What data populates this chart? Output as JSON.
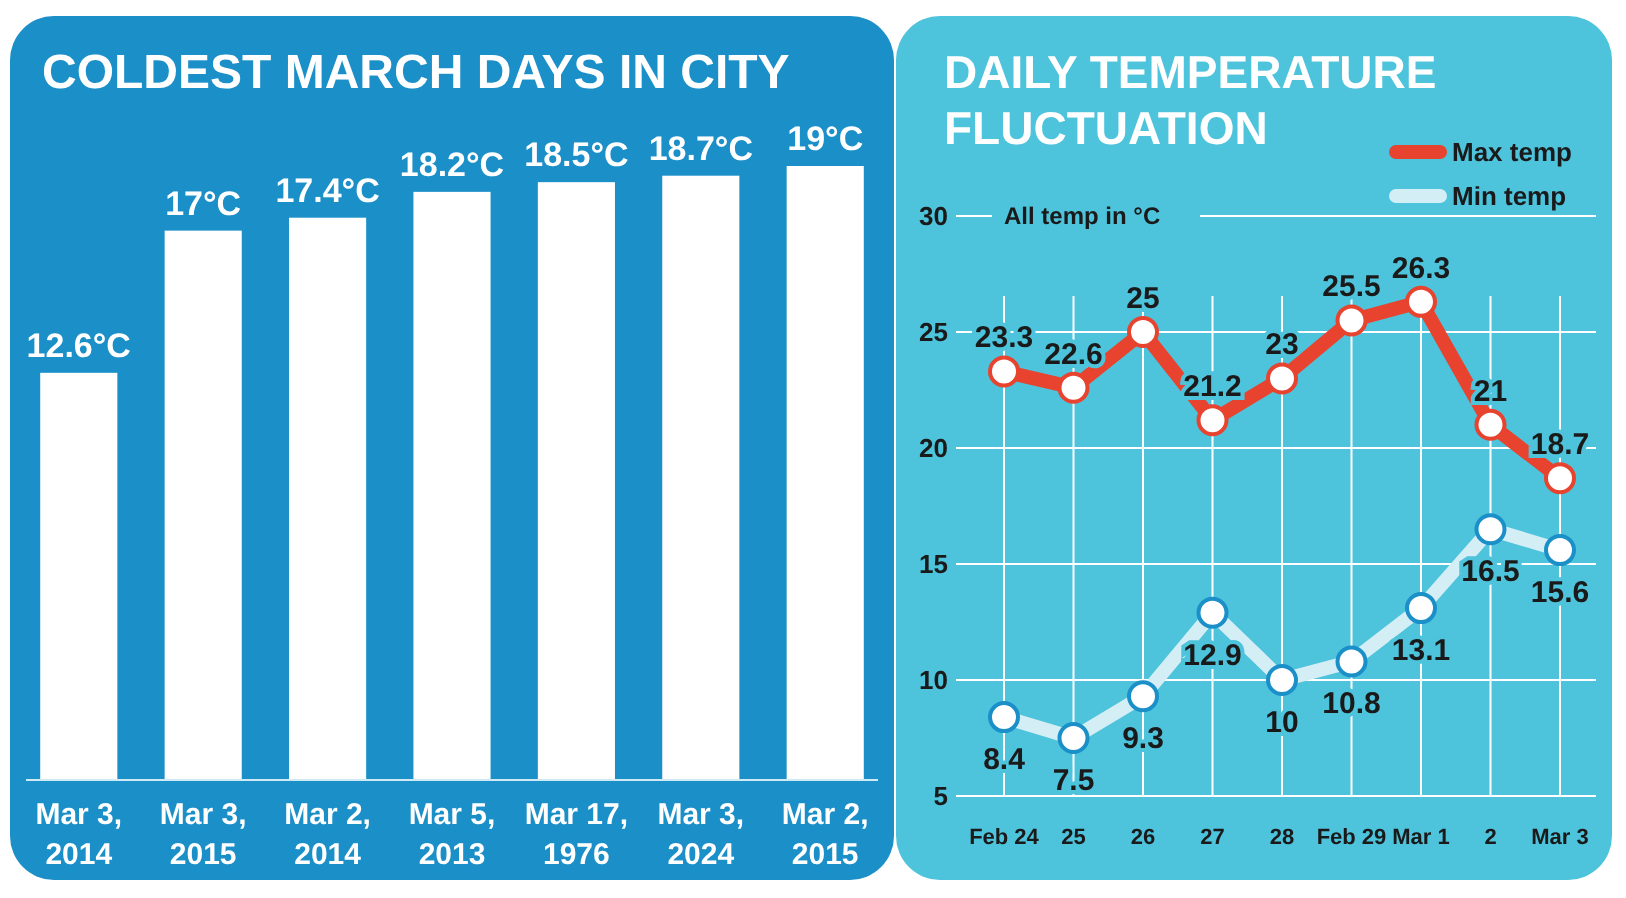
{
  "chart_data": [
    {
      "type": "bar",
      "title": "COLDEST MARCH DAYS IN CITY",
      "categories": [
        "Mar 3, 2014",
        "Mar 3, 2015",
        "Mar 2, 2014",
        "Mar 5, 2013",
        "Mar 17, 1976",
        "Mar 3, 2024",
        "Mar 2, 2015"
      ],
      "values": [
        12.6,
        17,
        17.4,
        18.2,
        18.5,
        18.7,
        19
      ],
      "value_labels": [
        "12.6°C",
        "17°C",
        "17.4°C",
        "18.2°C",
        "18.5°C",
        "18.7°C",
        "19°C"
      ],
      "color": "#ffffff"
    },
    {
      "type": "line",
      "title": "DAILY TEMPERATURE FLUCTUATION",
      "ylabel": "All temp in °C",
      "categories": [
        "Feb 24",
        "25",
        "26",
        "27",
        "28",
        "Feb 29",
        "Mar 1",
        "2",
        "Mar 3"
      ],
      "series": [
        {
          "name": "Max temp",
          "color": "#e8432e",
          "values": [
            23.3,
            22.6,
            25,
            21.2,
            23,
            25.5,
            26.3,
            21,
            18.7
          ]
        },
        {
          "name": "Min temp",
          "color": "#d4eef6",
          "values": [
            8.4,
            7.5,
            9.3,
            12.9,
            10,
            10.8,
            13.1,
            16.5,
            15.6
          ]
        }
      ],
      "ylim": [
        5,
        30
      ],
      "yticks": [
        5,
        10,
        15,
        20,
        25,
        30
      ],
      "grid": true,
      "legend": "top right",
      "data_labels": true,
      "marker": "circle",
      "line_style": "solid"
    }
  ]
}
